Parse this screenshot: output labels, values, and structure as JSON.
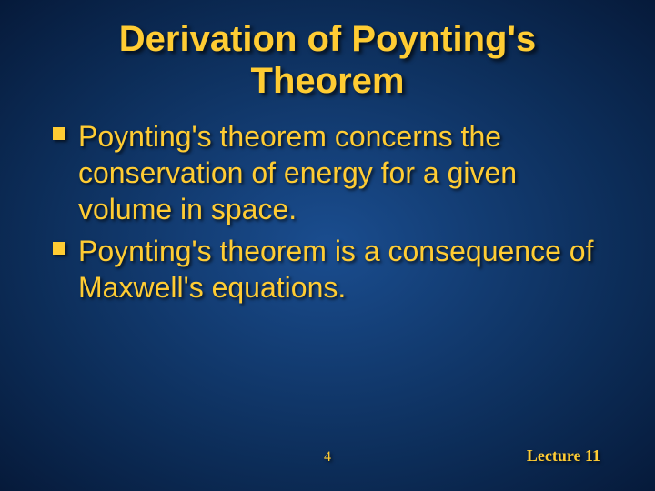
{
  "slide": {
    "title": "Derivation of Poynting's Theorem",
    "title_fontsize": 40,
    "title_color": "#ffcc33",
    "bullets": [
      "Poynting's theorem concerns the conservation of energy for a given volume in space.",
      "Poynting's theorem is a consequence of Maxwell's equations."
    ],
    "bullet_fontsize": 32,
    "bullet_color": "#ffcc33",
    "bullet_marker_size": 14,
    "page_number": "4",
    "page_number_fontsize": 16,
    "lecture_label": "Lecture 11",
    "lecture_fontsize": 18,
    "background_gradient": {
      "center": "#1a4d8f",
      "edge": "#061a3a"
    }
  }
}
